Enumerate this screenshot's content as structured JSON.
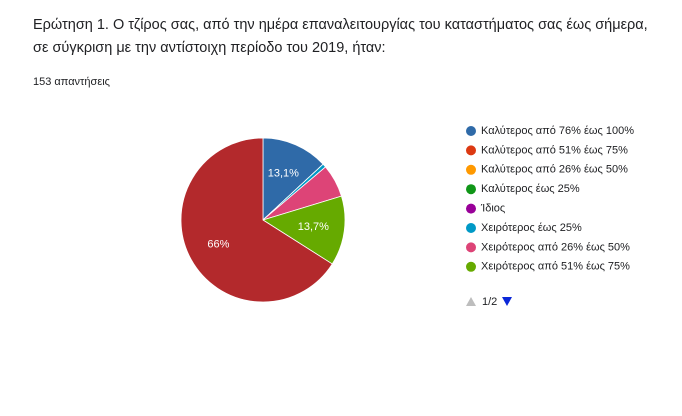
{
  "chart_data": {
    "type": "pie",
    "title": "Ερώτηση 1. Ο τζίρος σας, από την ημέρα επαναλειτουργίας του καταστήματος σας έως σήμερα, σε σύγκριση με την αντίστοιχη περίοδο του 2019, ήταν:",
    "subtitle": "153 απαντήσεις",
    "categories": [
      "Καλύτερος από 76% έως 100%",
      "Καλύτερος από 51% έως 75%",
      "Καλύτερος από 26% έως 50%",
      "Καλύτερος έως 25%",
      "Ίδιος",
      "Χειρότερος έως 25%",
      "Χειρότερος από 26% έως 50%",
      "Χειρότερος από 51% έως 75%",
      null
    ],
    "values": [
      13.1,
      0,
      0,
      0,
      0,
      0.7,
      6.5,
      13.7,
      66
    ],
    "value_labels": [
      "13,1%",
      null,
      null,
      null,
      null,
      null,
      null,
      "13,7%",
      "66%"
    ],
    "colors": [
      "#2f6aa8",
      "#dc3912",
      "#ff9900",
      "#109618",
      "#990099",
      "#0099c6",
      "#dd4477",
      "#66aa00",
      "#b3292c"
    ],
    "legend_position": "right",
    "legend_page": "1/2"
  }
}
